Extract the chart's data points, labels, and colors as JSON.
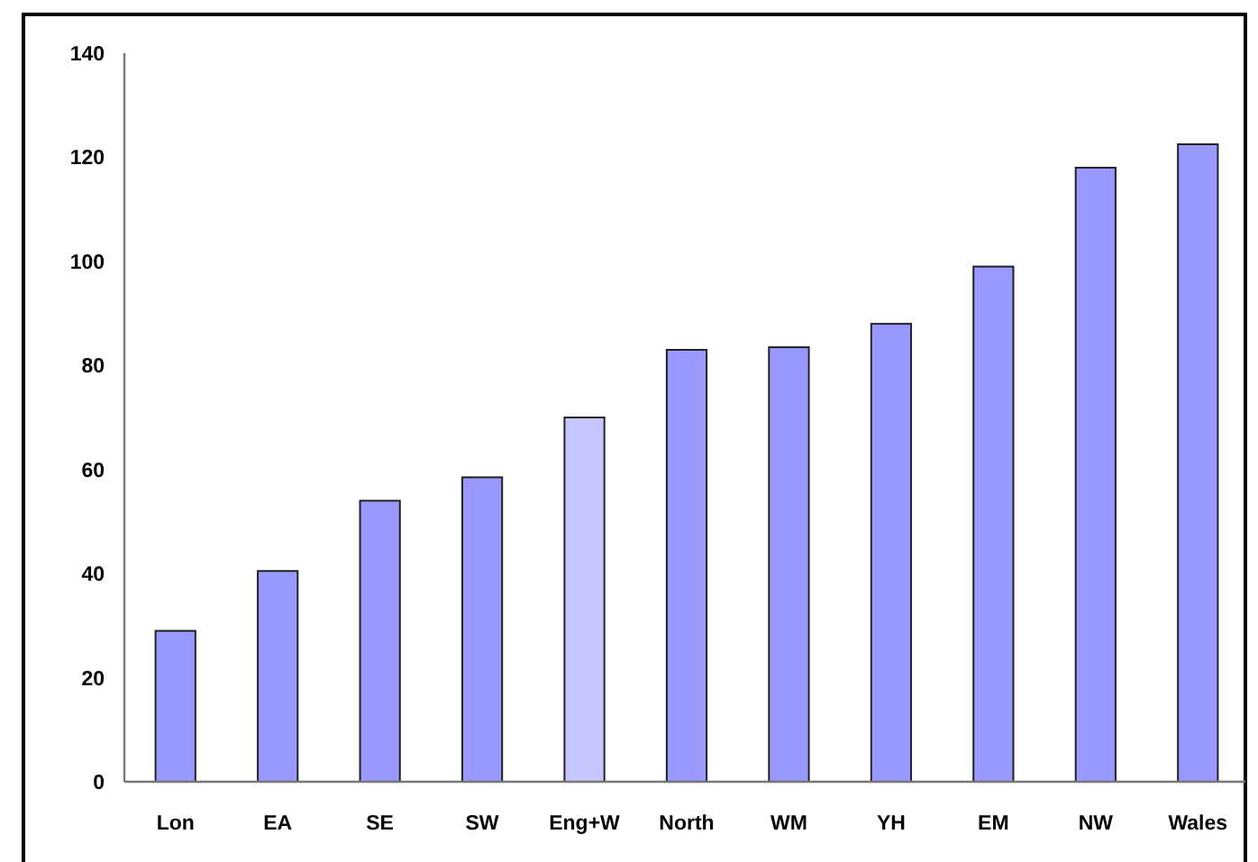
{
  "chart_data": {
    "type": "bar",
    "categories": [
      "Lon",
      "EA",
      "SE",
      "SW",
      "Eng+W",
      "North",
      "WM",
      "YH",
      "EM",
      "NW",
      "Wales"
    ],
    "values": [
      29,
      40.5,
      54,
      58.5,
      70,
      83,
      83.5,
      88,
      99,
      118,
      122.5
    ],
    "colors": [
      "#9999ff",
      "#9999ff",
      "#9999ff",
      "#9999ff",
      "#c6c6ff",
      "#9999ff",
      "#9999ff",
      "#9999ff",
      "#9999ff",
      "#9999ff",
      "#9999ff"
    ],
    "ylim": [
      0,
      140
    ],
    "yticks": [
      0,
      20,
      40,
      60,
      80,
      100,
      120,
      140
    ]
  }
}
